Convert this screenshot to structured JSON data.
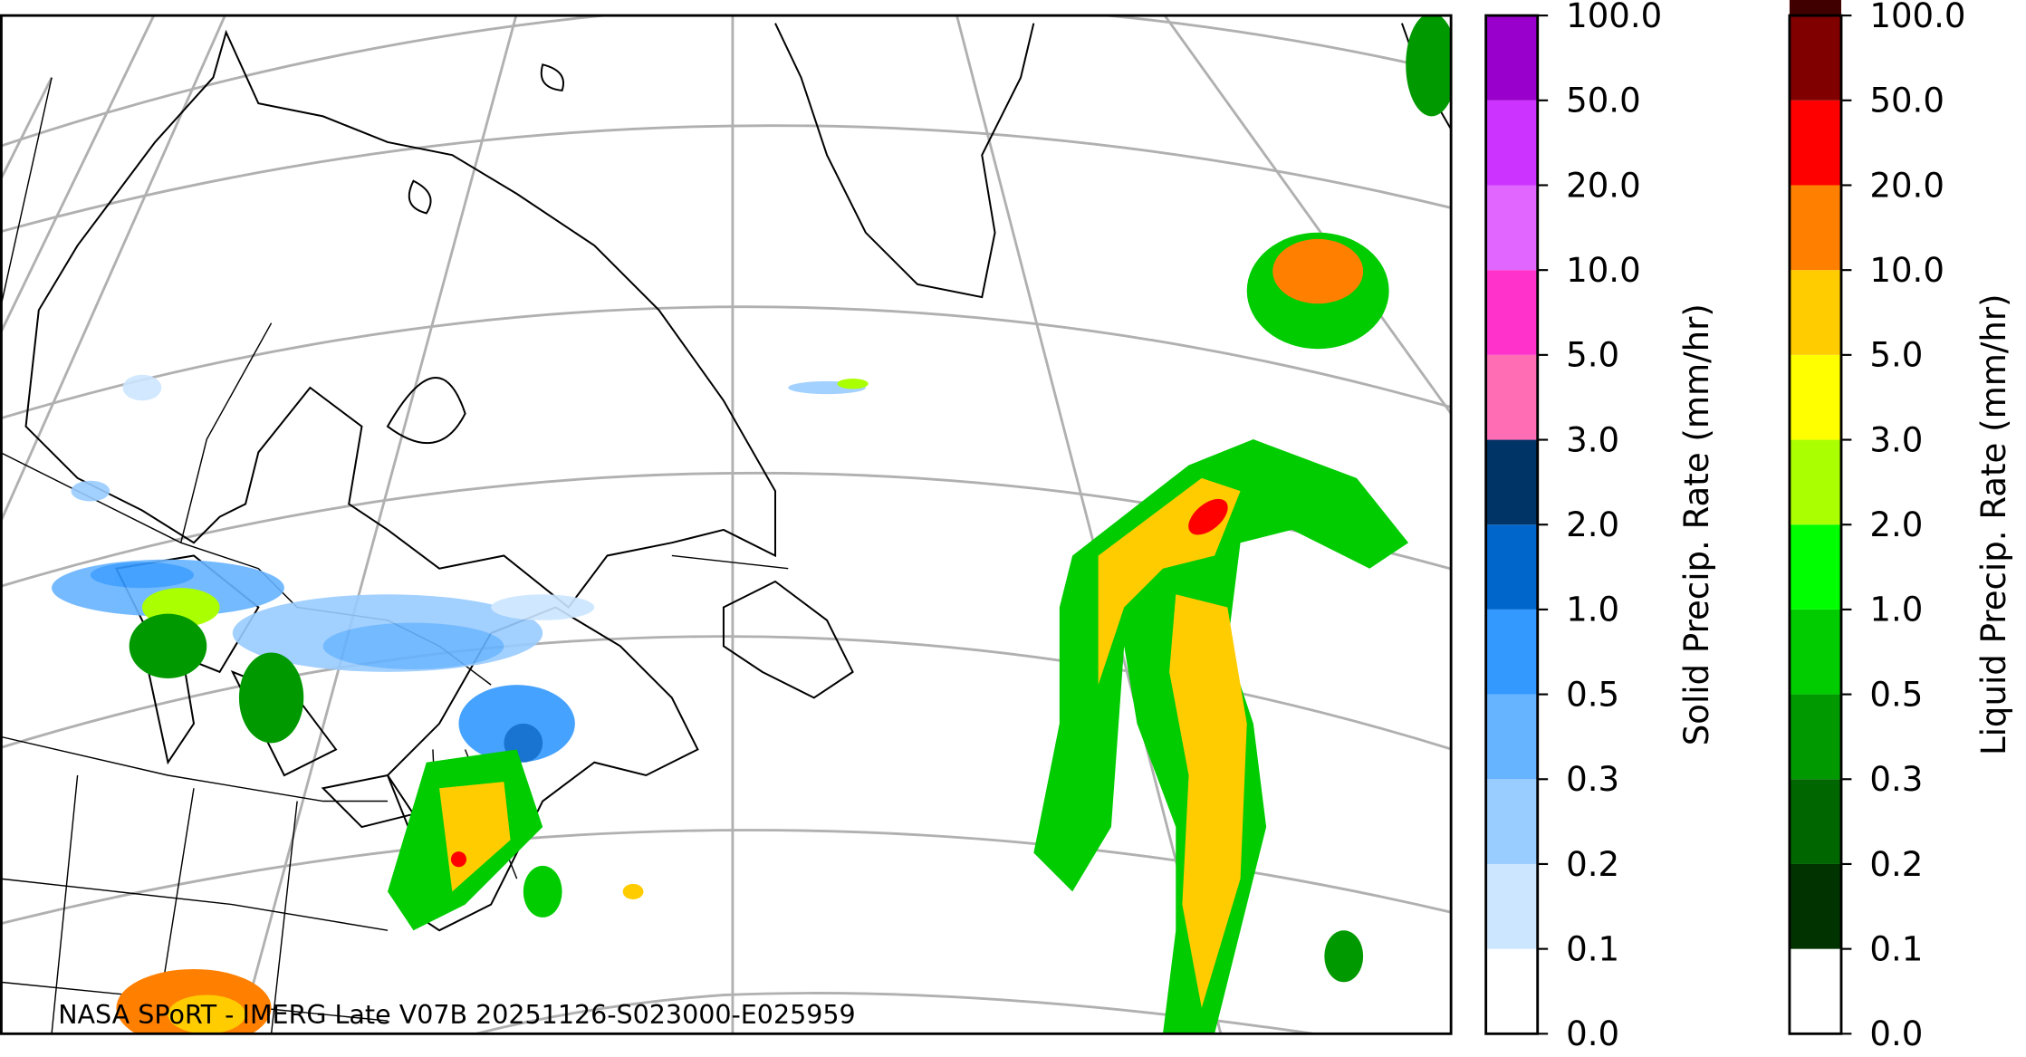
{
  "map": {
    "caption": "NASA SPoRT - IMERG Late V07B 20251126-S023000-E025959",
    "colorbars": [
      {
        "label": "Solid Precip. Rate (mm/hr)",
        "ticks": [
          {
            "value": 0,
            "label": "0.0"
          },
          {
            "value": 0.1,
            "label": "0.1"
          },
          {
            "value": 0.2,
            "label": "0.2"
          },
          {
            "value": 0.3,
            "label": "0.3"
          },
          {
            "value": 0.5,
            "label": "0.5"
          },
          {
            "value": 1,
            "label": "1.0"
          },
          {
            "value": 2,
            "label": "2.0"
          },
          {
            "value": 3,
            "label": "3.0"
          },
          {
            "value": 5,
            "label": "5.0"
          },
          {
            "value": 10,
            "label": "10.0"
          },
          {
            "value": 20,
            "label": "20.0"
          },
          {
            "value": 50,
            "label": "50.0"
          },
          {
            "value": 100,
            "label": "100.0"
          }
        ],
        "colors": [
          "#ffffff",
          "#cce6ff",
          "#99ccff",
          "#66b3ff",
          "#3399ff",
          "#0066cc",
          "#003366",
          "#ff6eb4",
          "#ff33cc",
          "#e066ff",
          "#cc33ff",
          "#9900cc"
        ]
      },
      {
        "label": "Liquid Precip. Rate (mm/hr)",
        "ticks": [
          {
            "value": 0,
            "label": "0.0"
          },
          {
            "value": 0.1,
            "label": "0.1"
          },
          {
            "value": 0.2,
            "label": "0.2"
          },
          {
            "value": 0.3,
            "label": "0.3"
          },
          {
            "value": 0.5,
            "label": "0.5"
          },
          {
            "value": 1,
            "label": "1.0"
          },
          {
            "value": 2,
            "label": "2.0"
          },
          {
            "value": 3,
            "label": "3.0"
          },
          {
            "value": 5,
            "label": "5.0"
          },
          {
            "value": 10,
            "label": "10.0"
          },
          {
            "value": 20,
            "label": "20.0"
          },
          {
            "value": 50,
            "label": "50.0"
          },
          {
            "value": 100,
            "label": "100.0"
          }
        ],
        "colors": [
          "#ffffff",
          "#003300",
          "#006600",
          "#009900",
          "#00cc00",
          "#00ff00",
          "#aaff00",
          "#ffff00",
          "#ffcc00",
          "#ff8000",
          "#ff0000",
          "#800000",
          "#400000"
        ]
      }
    ]
  }
}
